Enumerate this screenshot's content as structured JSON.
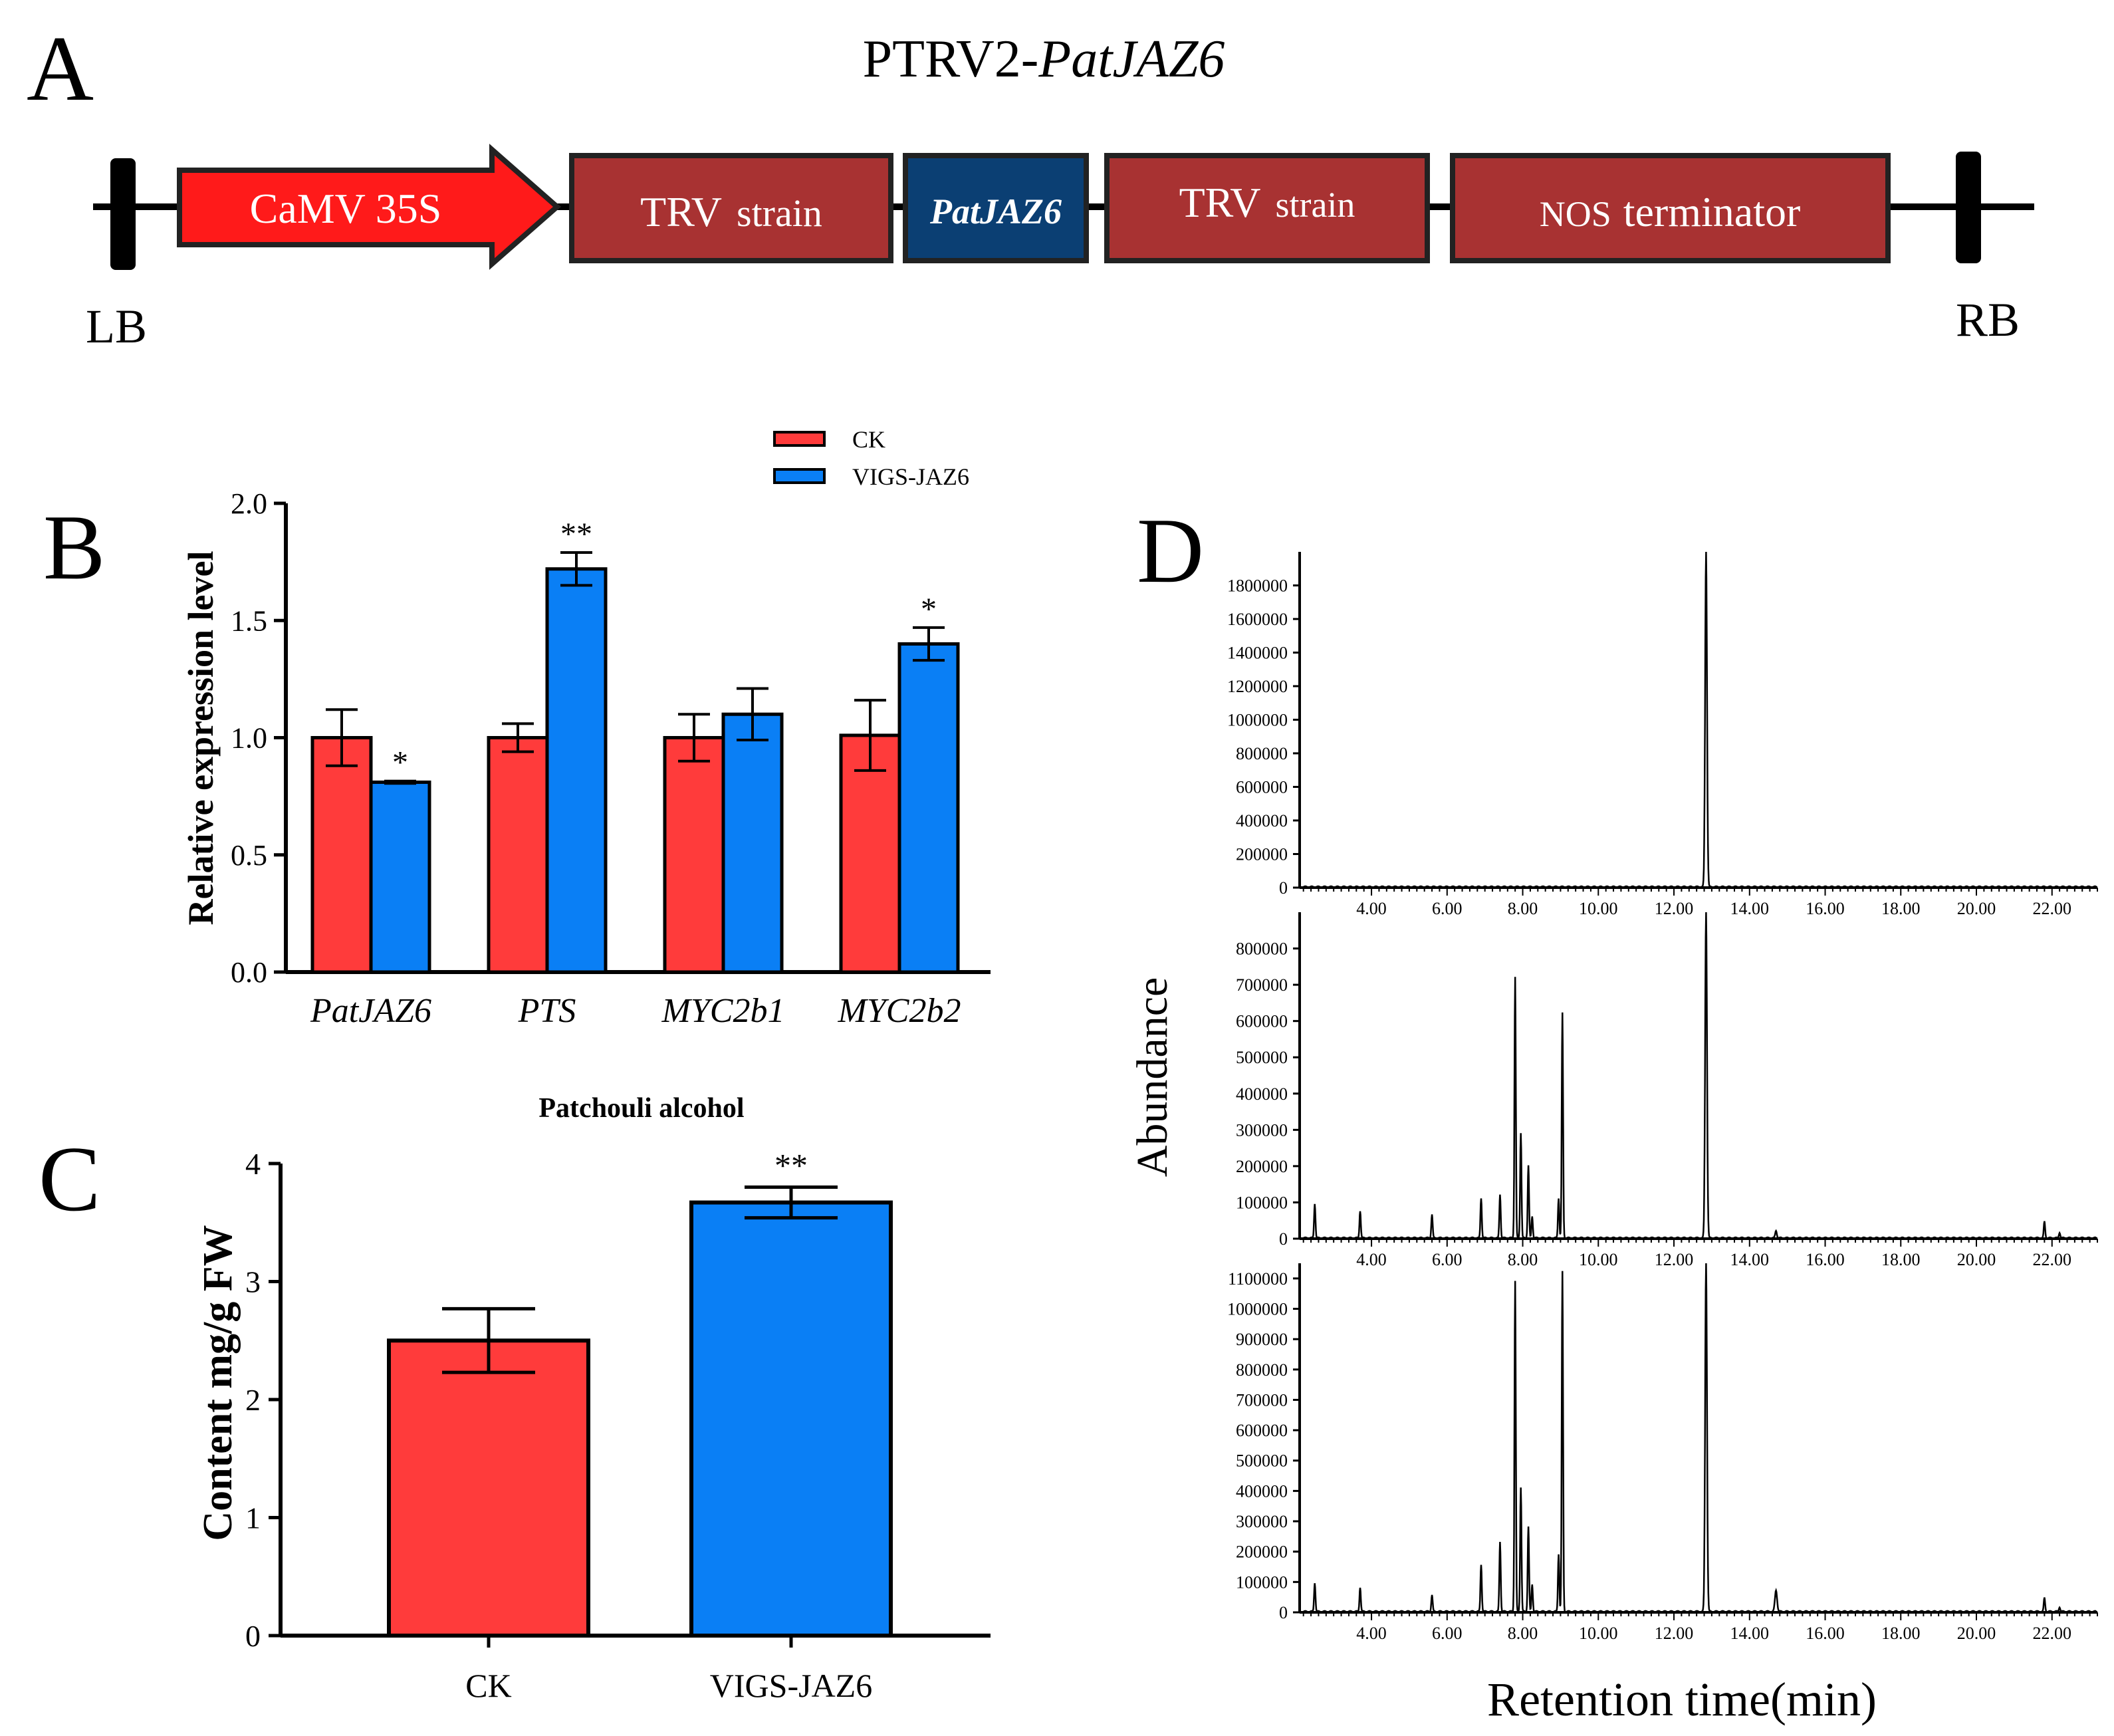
{
  "colors": {
    "red": "#ff3b3b",
    "blue": "#0a7ff5",
    "promoter": "#ff1a1a",
    "trv": "#a83232",
    "jaz": "#0b3f73"
  },
  "panelA": {
    "letter": "A",
    "title_prefix": "PTRV2-",
    "title_gene": "PatJAZ6",
    "lb": "LB",
    "rb": "RB",
    "promoter": "CaMV 35S",
    "trv1": {
      "a": "TRV",
      "b": "strain"
    },
    "gene": "PatJAZ6",
    "trv2": {
      "a": "TRV",
      "b": "strain"
    },
    "terminator": {
      "a": "NOS",
      "b": "terminator"
    }
  },
  "panelB": {
    "letter": "B",
    "legend": [
      "CK",
      "VIGS-JAZ6"
    ],
    "chart_data": {
      "type": "bar",
      "categories": [
        "PatJAZ6",
        "PTS",
        "MYC2b1",
        "MYC2b2"
      ],
      "series": [
        {
          "name": "CK",
          "values": [
            1.0,
            1.0,
            1.0,
            1.01
          ],
          "errors": [
            0.12,
            0.06,
            0.1,
            0.15
          ]
        },
        {
          "name": "VIGS-JAZ6",
          "values": [
            0.81,
            1.72,
            1.1,
            1.4
          ],
          "errors": [
            0.005,
            0.07,
            0.11,
            0.07
          ]
        }
      ],
      "significance": [
        [
          "",
          "*"
        ],
        [
          "",
          "**"
        ],
        [
          "",
          ""
        ],
        [
          "",
          "*"
        ]
      ],
      "ylabel": "Relative expression level",
      "yticks": [
        "0.0",
        "0.5",
        "1.0",
        "1.5",
        "2.0"
      ],
      "ylim": [
        0,
        2.0
      ]
    }
  },
  "panelC": {
    "letter": "C",
    "chart_data": {
      "type": "bar",
      "title": "Patchouli alcohol",
      "categories": [
        "CK",
        "VIGS-JAZ6"
      ],
      "values": [
        2.5,
        3.67
      ],
      "errors": [
        0.27,
        0.13
      ],
      "significance": [
        "",
        "**"
      ],
      "ylabel": "Content mg/g  FW",
      "yticks": [
        "0",
        "1",
        "2",
        "3",
        "4"
      ],
      "ylim": [
        0,
        4
      ]
    }
  },
  "panelD": {
    "letter": "D",
    "ylabel": "Abundance",
    "xlabel": "Retention time(min)",
    "xticks": [
      "4.00",
      "6.00",
      "8.00",
      "10.00",
      "12.00",
      "14.00",
      "16.00",
      "18.00",
      "20.00",
      "22.00"
    ],
    "chart_data": [
      {
        "type": "line",
        "xlim": [
          2.1,
          23.2
        ],
        "ylim": [
          0,
          2000000
        ],
        "yticks": [
          "0",
          "200000",
          "400000",
          "600000",
          "800000",
          "1000000",
          "1200000",
          "1400000",
          "1600000",
          "1800000"
        ],
        "peaks": [
          [
            12.85,
            2000000,
            0.07
          ]
        ]
      },
      {
        "type": "line",
        "xlim": [
          2.1,
          23.2
        ],
        "ylim": [
          0,
          900000
        ],
        "yticks": [
          "0",
          "100000",
          "200000",
          "300000",
          "400000",
          "500000",
          "600000",
          "700000",
          "800000"
        ],
        "peaks": [
          [
            2.5,
            95000,
            0.05
          ],
          [
            3.7,
            75000,
            0.05
          ],
          [
            5.6,
            65000,
            0.05
          ],
          [
            6.9,
            110000,
            0.05
          ],
          [
            7.4,
            120000,
            0.05
          ],
          [
            7.8,
            720000,
            0.05
          ],
          [
            7.95,
            290000,
            0.05
          ],
          [
            8.15,
            200000,
            0.05
          ],
          [
            8.25,
            60000,
            0.05
          ],
          [
            8.95,
            110000,
            0.05
          ],
          [
            9.05,
            620000,
            0.05
          ],
          [
            12.85,
            900000,
            0.07
          ],
          [
            14.7,
            20000,
            0.06
          ],
          [
            21.8,
            45000,
            0.05
          ],
          [
            22.2,
            15000,
            0.05
          ]
        ]
      },
      {
        "type": "line",
        "xlim": [
          2.1,
          23.2
        ],
        "ylim": [
          0,
          1150000
        ],
        "yticks": [
          "0",
          "100000",
          "200000",
          "300000",
          "400000",
          "500000",
          "600000",
          "700000",
          "800000",
          "900000",
          "1000000",
          "1100000"
        ],
        "peaks": [
          [
            2.5,
            95000,
            0.05
          ],
          [
            3.7,
            80000,
            0.05
          ],
          [
            5.6,
            55000,
            0.05
          ],
          [
            6.9,
            155000,
            0.05
          ],
          [
            7.4,
            230000,
            0.05
          ],
          [
            7.8,
            1090000,
            0.05
          ],
          [
            7.95,
            410000,
            0.05
          ],
          [
            8.15,
            280000,
            0.05
          ],
          [
            8.25,
            90000,
            0.05
          ],
          [
            8.95,
            190000,
            0.05
          ],
          [
            9.05,
            1120000,
            0.05
          ],
          [
            12.85,
            1150000,
            0.07
          ],
          [
            14.7,
            70000,
            0.08
          ],
          [
            21.8,
            45000,
            0.05
          ],
          [
            22.2,
            15000,
            0.05
          ]
        ]
      }
    ]
  }
}
